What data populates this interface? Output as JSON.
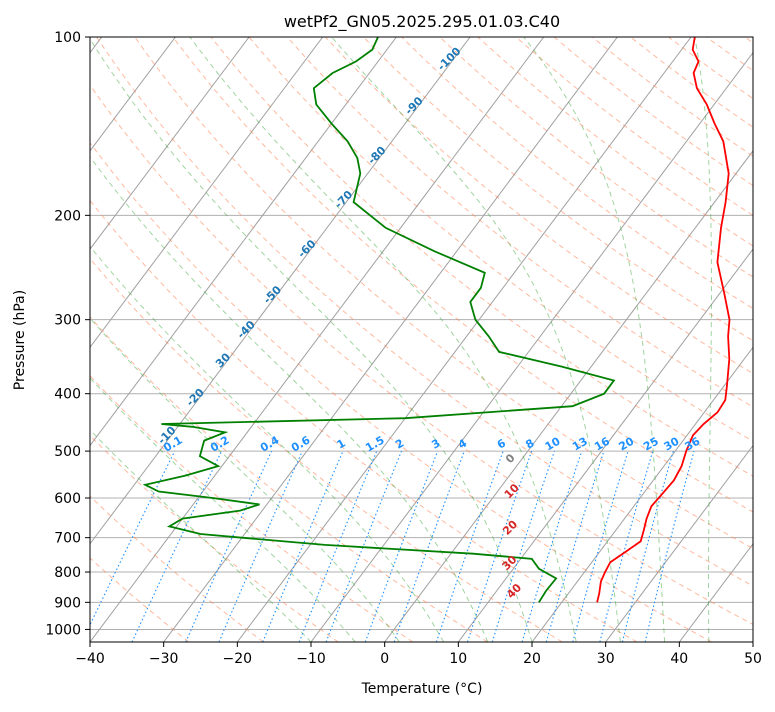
{
  "chart_data": {
    "type": "line",
    "subtype": "skew-t log-p sounding diagram",
    "title": "wetPf2_GN05.2025.295.01.03.C40",
    "xlabel": "Temperature (°C)",
    "ylabel": "Pressure (hPa)",
    "xlim": [
      -40,
      50
    ],
    "ylim": [
      1050,
      100
    ],
    "y_scale": "log",
    "grid": true,
    "x_ticks": [
      "−40",
      "−30",
      "−20",
      "−10",
      "0",
      "10",
      "20",
      "30",
      "40",
      "50"
    ],
    "y_ticks": [
      "100",
      "200",
      "300",
      "400",
      "500",
      "600",
      "700",
      "800",
      "900",
      "1000"
    ],
    "colors": {
      "temperature": "#ff0000",
      "dewpoint": "#008000",
      "isotherm": "#808080",
      "dry_adiabat": "#ff7f50",
      "moist_adiabat": "#2ca02c",
      "mixing_ratio": "#1e90ff",
      "dry_label": "#1f77b4",
      "moist_label": "#d62728",
      "zero_label": "#7f7f7f",
      "mixing_label": "#1e90ff"
    },
    "series": [
      {
        "key": "temperature",
        "values": [
          [
            900,
            24.8
          ],
          [
            870,
            24.2
          ],
          [
            830,
            23.2
          ],
          [
            800,
            22.8
          ],
          [
            770,
            22.5
          ],
          [
            740,
            23.5
          ],
          [
            710,
            24.5
          ],
          [
            680,
            23.8
          ],
          [
            650,
            23.0
          ],
          [
            620,
            22.4
          ],
          [
            590,
            22.6
          ],
          [
            560,
            22.8
          ],
          [
            530,
            22.4
          ],
          [
            500,
            21.5
          ],
          [
            470,
            20.8
          ],
          [
            450,
            21.1
          ],
          [
            430,
            21.8
          ],
          [
            410,
            21.6
          ],
          [
            390,
            20.5
          ],
          [
            350,
            18.0
          ],
          [
            320,
            15.5
          ],
          [
            300,
            14.0
          ],
          [
            270,
            10.5
          ],
          [
            240,
            6.5
          ],
          [
            210,
            3.5
          ],
          [
            190,
            1.5
          ],
          [
            170,
            -1.0
          ],
          [
            150,
            -5.0
          ],
          [
            140,
            -8.0
          ],
          [
            130,
            -11.0
          ],
          [
            122,
            -14.0
          ],
          [
            115,
            -16.0
          ],
          [
            110,
            -16.5
          ],
          [
            105,
            -18.5
          ],
          [
            100,
            -19.5
          ]
        ]
      },
      {
        "key": "dewpoint",
        "values": [
          [
            900,
            16.9
          ],
          [
            860,
            16.7
          ],
          [
            820,
            16.8
          ],
          [
            790,
            13.5
          ],
          [
            760,
            11.5
          ],
          [
            745,
            3.0
          ],
          [
            720,
            -18.0
          ],
          [
            700,
            -30.0
          ],
          [
            690,
            -36.0
          ],
          [
            670,
            -41.0
          ],
          [
            650,
            -40.0
          ],
          [
            630,
            -33.0
          ],
          [
            615,
            -31.0
          ],
          [
            600,
            -38.0
          ],
          [
            585,
            -46.0
          ],
          [
            570,
            -48.5
          ],
          [
            550,
            -44.0
          ],
          [
            530,
            -40.5
          ],
          [
            510,
            -44.0
          ],
          [
            495,
            -44.5
          ],
          [
            480,
            -45.0
          ],
          [
            465,
            -43.0
          ],
          [
            455,
            -48.0
          ],
          [
            450,
            -52.5
          ],
          [
            440,
            -20.0
          ],
          [
            420,
            1.5
          ],
          [
            400,
            4.5
          ],
          [
            380,
            4.5
          ],
          [
            360,
            -4.0
          ],
          [
            340,
            -14.0
          ],
          [
            320,
            -17.0
          ],
          [
            300,
            -20.5
          ],
          [
            280,
            -23.0
          ],
          [
            265,
            -23.0
          ],
          [
            250,
            -24.0
          ],
          [
            230,
            -33.0
          ],
          [
            210,
            -42.0
          ],
          [
            190,
            -49.0
          ],
          [
            170,
            -51.0
          ],
          [
            160,
            -53.0
          ],
          [
            150,
            -56.0
          ],
          [
            140,
            -60.0
          ],
          [
            130,
            -64.0
          ],
          [
            122,
            -66.0
          ],
          [
            115,
            -65.0
          ],
          [
            110,
            -63.0
          ],
          [
            105,
            -62.0
          ],
          [
            100,
            -62.5
          ]
        ]
      }
    ],
    "dry_adiabat_labels": [
      {
        "text": "-100",
        "p": 110
      },
      {
        "text": "-90",
        "p": 132
      },
      {
        "text": "-80",
        "p": 160
      },
      {
        "text": "-70",
        "p": 190
      },
      {
        "text": "-60",
        "p": 230
      },
      {
        "text": "-50",
        "p": 275
      },
      {
        "text": "-40",
        "p": 315
      },
      {
        "text": "30",
        "p": 355
      },
      {
        "text": "-20",
        "p": 410
      },
      {
        "text": "-10",
        "p": 475
      }
    ],
    "moist_adiabat_labels": [
      {
        "text": "0",
        "p": 520
      },
      {
        "text": "10",
        "p": 590
      },
      {
        "text": "20",
        "p": 680
      },
      {
        "text": "30",
        "p": 780
      },
      {
        "text": "40",
        "p": 870
      }
    ],
    "mixing_ratio_labels": [
      "0.1",
      "0.2",
      "0.4",
      "0.6",
      "1",
      "1.5",
      "2",
      "3",
      "4",
      "6",
      "8",
      "10",
      "13",
      "16",
      "20",
      "25",
      "30",
      "36"
    ]
  }
}
